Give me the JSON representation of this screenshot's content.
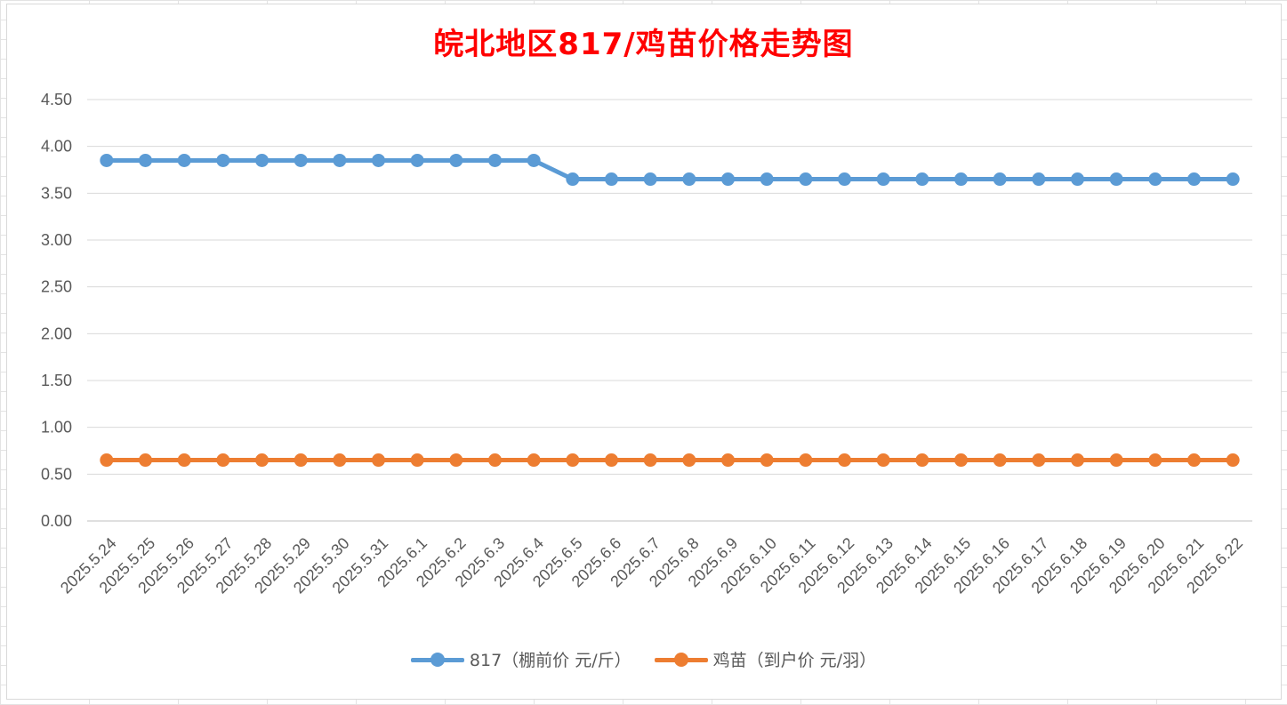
{
  "chart_data": {
    "type": "line",
    "title": "皖北地区817/鸡苗价格走势图",
    "xlabel": "",
    "ylabel": "",
    "ylim": [
      0,
      4.5
    ],
    "yticks": [
      "0.00",
      "0.50",
      "1.00",
      "1.50",
      "2.00",
      "2.50",
      "3.00",
      "3.50",
      "4.00",
      "4.50"
    ],
    "grid": true,
    "legend_position": "bottom",
    "categories": [
      "2025.5.24",
      "2025.5.25",
      "2025.5.26",
      "2025.5.27",
      "2025.5.28",
      "2025.5.29",
      "2025.5.30",
      "2025.5.31",
      "2025.6.1",
      "2025.6.2",
      "2025.6.3",
      "2025.6.4",
      "2025.6.5",
      "2025.6.6",
      "2025.6.7",
      "2025.6.8",
      "2025.6.9",
      "2025.6.10",
      "2025.6.11",
      "2025.6.12",
      "2025.6.13",
      "2025.6.14",
      "2025.6.15",
      "2025.6.16",
      "2025.6.17",
      "2025.6.18",
      "2025.6.19",
      "2025.6.20",
      "2025.6.21",
      "2025.6.22"
    ],
    "series": [
      {
        "name": "817（棚前价 元/斤）",
        "color": "#5b9bd5",
        "values": [
          3.85,
          3.85,
          3.85,
          3.85,
          3.85,
          3.85,
          3.85,
          3.85,
          3.85,
          3.85,
          3.85,
          3.85,
          3.65,
          3.65,
          3.65,
          3.65,
          3.65,
          3.65,
          3.65,
          3.65,
          3.65,
          3.65,
          3.65,
          3.65,
          3.65,
          3.65,
          3.65,
          3.65,
          3.65,
          3.65
        ]
      },
      {
        "name": "鸡苗（到户价 元/羽）",
        "color": "#ed7d31",
        "values": [
          0.65,
          0.65,
          0.65,
          0.65,
          0.65,
          0.65,
          0.65,
          0.65,
          0.65,
          0.65,
          0.65,
          0.65,
          0.65,
          0.65,
          0.65,
          0.65,
          0.65,
          0.65,
          0.65,
          0.65,
          0.65,
          0.65,
          0.65,
          0.65,
          0.65,
          0.65,
          0.65,
          0.65,
          0.65,
          0.65
        ]
      }
    ]
  }
}
